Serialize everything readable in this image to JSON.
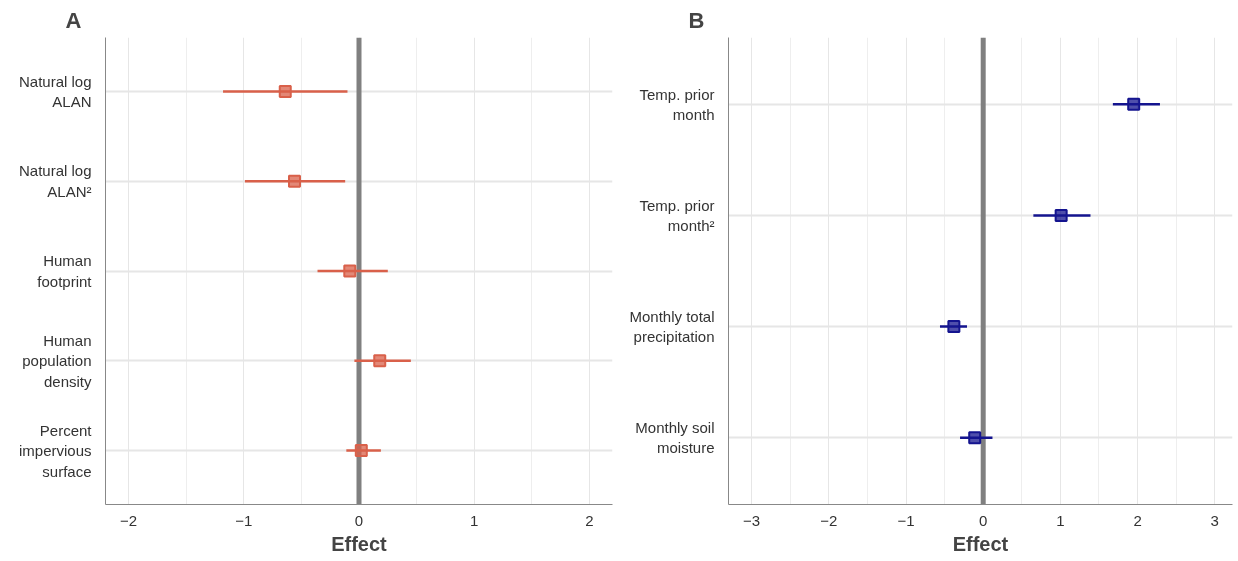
{
  "chart_data": [
    {
      "type": "scatter",
      "orientation": "horizontal",
      "title": "A",
      "xlabel": "Effect",
      "categories": [
        "Natural log\nALAN",
        "Natural log\nALAN²",
        "Human\nfootprint",
        "Human\npopulation\ndensity",
        "Percent\nimpervious\nsurface"
      ],
      "values": [
        -0.64,
        -0.56,
        -0.08,
        0.18,
        0.02
      ],
      "errors": [
        [
          -1.18,
          -0.1
        ],
        [
          -0.99,
          -0.12
        ],
        [
          -0.36,
          0.25
        ],
        [
          -0.04,
          0.45
        ],
        [
          -0.11,
          0.19
        ]
      ],
      "color": "#d9604a",
      "marker": "square",
      "xlim": [
        -2.2,
        2.2
      ],
      "xticks": [
        {
          "value": -2,
          "label": "−2"
        },
        {
          "value": -1,
          "label": "−1"
        },
        0,
        1,
        2
      ],
      "ref_lines": [
        {
          "axis": "x",
          "value": 0,
          "color": "#808080"
        }
      ],
      "grid": true
    },
    {
      "type": "scatter",
      "orientation": "horizontal",
      "title": "B",
      "xlabel": "Effect",
      "categories": [
        "Temp. prior\nmonth",
        "Temp. prior\nmonth²",
        "Monthly total\nprecipitation",
        "Monthly soil\nmoisture"
      ],
      "values": [
        1.95,
        1.01,
        -0.38,
        -0.11
      ],
      "errors": [
        [
          1.68,
          2.29
        ],
        [
          0.65,
          1.39
        ],
        [
          -0.56,
          -0.21
        ],
        [
          -0.3,
          0.12
        ]
      ],
      "color": "#14148f",
      "marker": "square",
      "xlim": [
        -3.3,
        3.23
      ],
      "xticks": [
        {
          "value": -3,
          "label": "−3"
        },
        {
          "value": -2,
          "label": "−2"
        },
        {
          "value": -1,
          "label": "−1"
        },
        0,
        1,
        2,
        3
      ],
      "ref_lines": [
        {
          "axis": "x",
          "value": 0,
          "color": "#808080"
        }
      ],
      "grid": true
    }
  ]
}
